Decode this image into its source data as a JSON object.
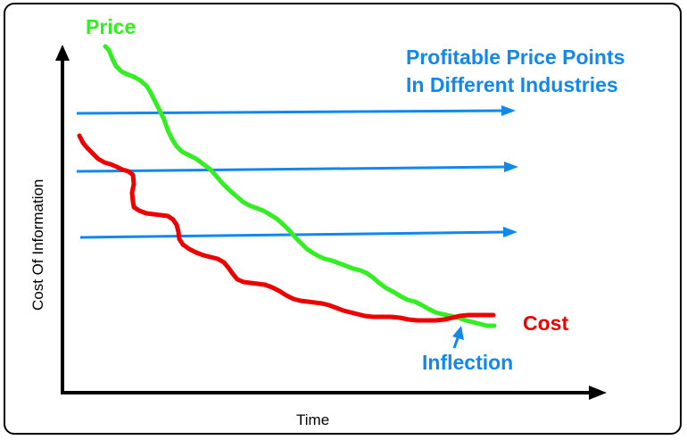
{
  "labels": {
    "price": "Price",
    "cost": "Cost",
    "inflection": "Inflection",
    "price_points_line1": "Profitable Price Points",
    "price_points_line2": "In Different Industries",
    "x_axis": "Time",
    "y_axis": "Cost Of Information"
  },
  "colors": {
    "price": "#33ee22",
    "cost": "#ee0000",
    "annotation": "#1188ee",
    "axis": "#000000"
  }
}
